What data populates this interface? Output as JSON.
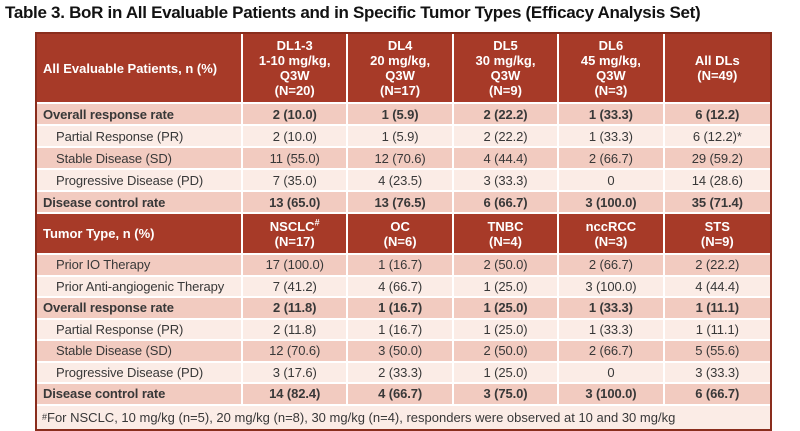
{
  "title": "Table 3. BoR in All Evaluable Patients and in Specific Tumor Types (Efficacy Analysis Set)",
  "colors": {
    "header_bg": "#A73A28",
    "table_border": "#8A2D1D",
    "header_text": "#FFFFFF",
    "row_dark": "#F2CBC0",
    "row_light": "#FBECE6",
    "body_text": "#383838",
    "title_text": "#121212"
  },
  "sections": [
    {
      "header": {
        "label": "All Evaluable Patients, n (%)",
        "columns": [
          {
            "lines": [
              "DL1-3",
              "1-10 mg/kg,",
              "Q3W",
              "(N=20)"
            ]
          },
          {
            "lines": [
              "DL4",
              "20 mg/kg,",
              "Q3W",
              "(N=17)"
            ]
          },
          {
            "lines": [
              "DL5",
              "30 mg/kg,",
              "Q3W",
              "(N=9)"
            ]
          },
          {
            "lines": [
              "DL6",
              "45 mg/kg,",
              "Q3W",
              "(N=3)"
            ]
          },
          {
            "lines": [
              "All DLs",
              "(N=49)"
            ]
          }
        ]
      },
      "rows": [
        {
          "label": "Overall response rate",
          "bold": true,
          "indent": false,
          "values": [
            "2 (10.0)",
            "1 (5.9)",
            "2 (22.2)",
            "1 (33.3)",
            "6 (12.2)"
          ]
        },
        {
          "label": "Partial Response (PR)",
          "bold": false,
          "indent": true,
          "values": [
            "2 (10.0)",
            "1 (5.9)",
            "2 (22.2)",
            "1 (33.3)",
            "6 (12.2)*"
          ]
        },
        {
          "label": "Stable Disease (SD)",
          "bold": false,
          "indent": true,
          "values": [
            "11 (55.0)",
            "12 (70.6)",
            "4 (44.4)",
            "2 (66.7)",
            "29 (59.2)"
          ]
        },
        {
          "label": "Progressive Disease (PD)",
          "bold": false,
          "indent": true,
          "values": [
            "7 (35.0)",
            "4 (23.5)",
            "3 (33.3)",
            "0",
            "14 (28.6)"
          ]
        },
        {
          "label": "Disease control rate",
          "bold": true,
          "indent": false,
          "values": [
            "13 (65.0)",
            "13 (76.5)",
            "6 (66.7)",
            "3 (100.0)",
            "35 (71.4)"
          ]
        }
      ]
    },
    {
      "header": {
        "label": "Tumor Type, n (%)",
        "columns": [
          {
            "lines": [
              {
                "text": "NSCLC",
                "sup": "#"
              },
              "(N=17)"
            ]
          },
          {
            "lines": [
              "OC",
              "(N=6)"
            ]
          },
          {
            "lines": [
              "TNBC",
              "(N=4)"
            ]
          },
          {
            "lines": [
              "nccRCC",
              "(N=3)"
            ]
          },
          {
            "lines": [
              "STS",
              "(N=9)"
            ]
          }
        ]
      },
      "rows": [
        {
          "label": "Prior IO Therapy",
          "bold": false,
          "indent": true,
          "values": [
            "17 (100.0)",
            "1 (16.7)",
            "2 (50.0)",
            "2 (66.7)",
            "2 (22.2)"
          ]
        },
        {
          "label": "Prior Anti-angiogenic Therapy",
          "bold": false,
          "indent": true,
          "values": [
            "7 (41.2)",
            "4 (66.7)",
            "1 (25.0)",
            "3 (100.0)",
            "4 (44.4)"
          ]
        },
        {
          "label": "Overall response rate",
          "bold": true,
          "indent": false,
          "values": [
            "2 (11.8)",
            "1 (16.7)",
            "1 (25.0)",
            "1 (33.3)",
            "1 (11.1)"
          ]
        },
        {
          "label": "Partial Response (PR)",
          "bold": false,
          "indent": true,
          "values": [
            "2 (11.8)",
            "1 (16.7)",
            "1 (25.0)",
            "1 (33.3)",
            "1 (11.1)"
          ]
        },
        {
          "label": "Stable Disease (SD)",
          "bold": false,
          "indent": true,
          "values": [
            "12 (70.6)",
            "3 (50.0)",
            "2 (50.0)",
            "2 (66.7)",
            "5 (55.6)"
          ]
        },
        {
          "label": "Progressive Disease (PD)",
          "bold": false,
          "indent": true,
          "values": [
            "3 (17.6)",
            "2 (33.3)",
            "1 (25.0)",
            "0",
            "3 (33.3)"
          ]
        },
        {
          "label": "Disease control rate",
          "bold": true,
          "indent": false,
          "values": [
            "14 (82.4)",
            "4 (66.7)",
            "3 (75.0)",
            "3 (100.0)",
            "6 (66.7)"
          ]
        }
      ]
    }
  ],
  "footnote": {
    "marker": "#",
    "text": "For NSCLC, 10 mg/kg (n=5), 20 mg/kg (n=8), 30 mg/kg (n=4), responders were observed at 10 and 30 mg/kg"
  }
}
